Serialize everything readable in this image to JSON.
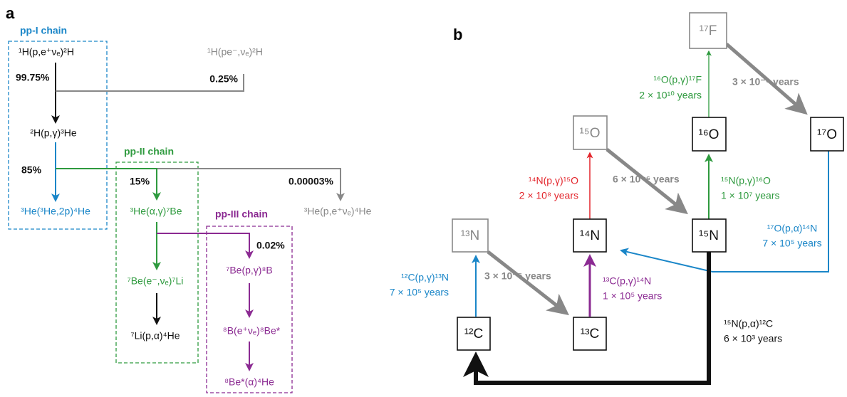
{
  "panel_a": {
    "label": "a",
    "chains": [
      "pp-I chain",
      "pp-II chain",
      "pp-III chain"
    ],
    "reactions": [
      "¹H(p,e⁺νₑ)²H",
      "¹H(pe⁻,νₑ)²H",
      "²H(p,γ)³He",
      "³He(³He,2p)⁴He",
      "³He(α,γ)⁷Be",
      "³He(p,e⁺νₑ)⁴He",
      "⁷Be(e⁻,νₑ)⁷Li",
      "⁷Li(p,α)⁴He",
      "⁷Be(p,γ)⁸B",
      "⁸B(e⁺νₑ)⁸Be*",
      "⁸Be*(α)⁴He"
    ],
    "branches": [
      "99.75%",
      "0.25%",
      "85%",
      "15%",
      "0.00003%",
      "0.02%"
    ]
  },
  "panel_b": {
    "label": "b",
    "nuclei": [
      "¹⁷F",
      "¹⁵O",
      "¹⁶O",
      "¹⁷O",
      "¹³N",
      "¹⁴N",
      "¹⁵N",
      "¹²C",
      "¹³C"
    ],
    "reactions": [
      {
        "equation": "¹⁶O(p,γ)¹⁷F",
        "timescale": "2 × 10¹⁰ years"
      },
      {
        "equation": "¹⁴N(p,γ)¹⁵O",
        "timescale": "2 × 10⁸ years"
      },
      {
        "equation": "¹⁵N(p,γ)¹⁶O",
        "timescale": "1 × 10⁷ years"
      },
      {
        "equation": "¹⁷O(p,α)¹⁴N",
        "timescale": "7 × 10⁵ years"
      },
      {
        "equation": "¹²C(p,γ)¹³N",
        "timescale": "7 × 10⁵ years"
      },
      {
        "equation": "¹³C(p,γ)¹⁴N",
        "timescale": "1 × 10⁵ years"
      },
      {
        "equation": "¹⁵N(p,α)¹²C",
        "timescale": "6 × 10³ years"
      }
    ],
    "decays": [
      "3 × 10⁻⁶ years",
      "6 × 10⁻⁶ years",
      "3 × 10⁻⁵ years"
    ]
  }
}
